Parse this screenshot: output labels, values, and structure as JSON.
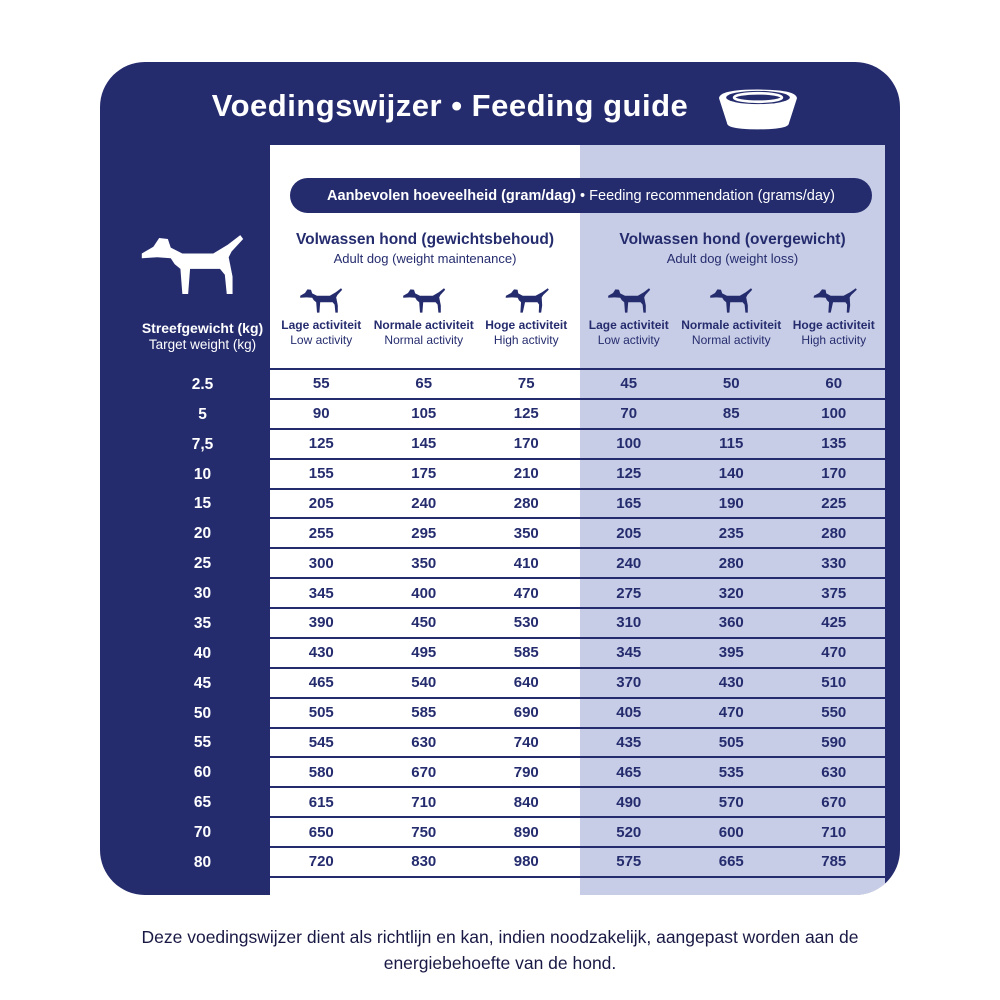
{
  "title": "Voedingswijzer • Feeding guide",
  "recommendation": {
    "nl_bold": "Aanbevolen hoeveelheid (gram/dag)",
    "en_rest": " • Feeding recommendation (grams/day)"
  },
  "axis": {
    "nl": "Streefgewicht (kg)",
    "en": "Target weight (kg)"
  },
  "groups": [
    {
      "nl": "Volwassen hond (gewichtsbehoud)",
      "en": "Adult dog (weight maintenance)"
    },
    {
      "nl": "Volwassen hond (overgewicht)",
      "en": "Adult dog (weight loss)"
    }
  ],
  "activity": [
    {
      "nl": "Lage activiteit",
      "en": "Low activity"
    },
    {
      "nl": "Normale activiteit",
      "en": "Normal activity"
    },
    {
      "nl": "Hoge activiteit",
      "en": "High activity"
    }
  ],
  "rows": [
    {
      "weight": "2.5",
      "maintenance": [
        55,
        65,
        75
      ],
      "loss": [
        45,
        50,
        60
      ]
    },
    {
      "weight": "5",
      "maintenance": [
        90,
        105,
        125
      ],
      "loss": [
        70,
        85,
        100
      ]
    },
    {
      "weight": "7,5",
      "maintenance": [
        125,
        145,
        170
      ],
      "loss": [
        100,
        115,
        135
      ]
    },
    {
      "weight": "10",
      "maintenance": [
        155,
        175,
        210
      ],
      "loss": [
        125,
        140,
        170
      ]
    },
    {
      "weight": "15",
      "maintenance": [
        205,
        240,
        280
      ],
      "loss": [
        165,
        190,
        225
      ]
    },
    {
      "weight": "20",
      "maintenance": [
        255,
        295,
        350
      ],
      "loss": [
        205,
        235,
        280
      ]
    },
    {
      "weight": "25",
      "maintenance": [
        300,
        350,
        410
      ],
      "loss": [
        240,
        280,
        330
      ]
    },
    {
      "weight": "30",
      "maintenance": [
        345,
        400,
        470
      ],
      "loss": [
        275,
        320,
        375
      ]
    },
    {
      "weight": "35",
      "maintenance": [
        390,
        450,
        530
      ],
      "loss": [
        310,
        360,
        425
      ]
    },
    {
      "weight": "40",
      "maintenance": [
        430,
        495,
        585
      ],
      "loss": [
        345,
        395,
        470
      ]
    },
    {
      "weight": "45",
      "maintenance": [
        465,
        540,
        640
      ],
      "loss": [
        370,
        430,
        510
      ]
    },
    {
      "weight": "50",
      "maintenance": [
        505,
        585,
        690
      ],
      "loss": [
        405,
        470,
        550
      ]
    },
    {
      "weight": "55",
      "maintenance": [
        545,
        630,
        740
      ],
      "loss": [
        435,
        505,
        590
      ]
    },
    {
      "weight": "60",
      "maintenance": [
        580,
        670,
        790
      ],
      "loss": [
        465,
        535,
        630
      ]
    },
    {
      "weight": "65",
      "maintenance": [
        615,
        710,
        840
      ],
      "loss": [
        490,
        570,
        670
      ]
    },
    {
      "weight": "70",
      "maintenance": [
        650,
        750,
        890
      ],
      "loss": [
        520,
        600,
        710
      ]
    },
    {
      "weight": "80",
      "maintenance": [
        720,
        830,
        980
      ],
      "loss": [
        575,
        665,
        785
      ]
    }
  ],
  "footer": "Deze voedingswijzer dient als richtlijn en kan, indien noodzakelijk, aangepast worden aan de energiebehoefte van de hond.",
  "colors": {
    "navy": "#252c6e",
    "light_blue": "#c7cde6"
  }
}
